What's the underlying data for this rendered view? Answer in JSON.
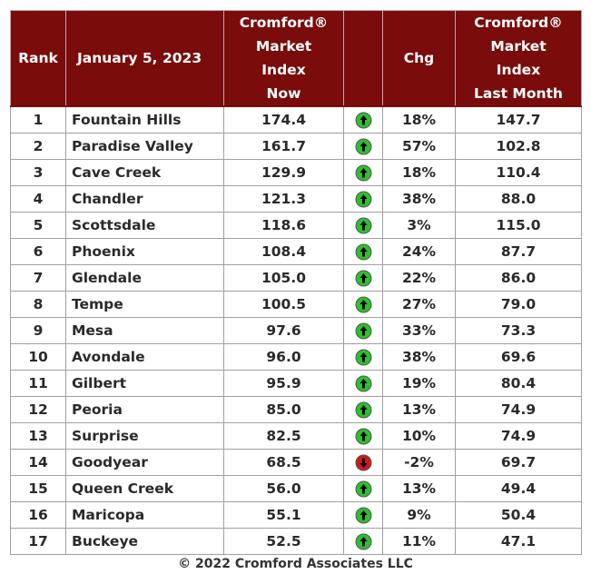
{
  "chart_data": {
    "type": "table",
    "header": {
      "rank": "Rank",
      "date": "January 5, 2023",
      "index_now": [
        "Cromford®",
        "Market",
        "Index",
        "Now"
      ],
      "chg": "Chg",
      "index_last": [
        "Cromford®",
        "Market",
        "Index",
        "Last Month"
      ]
    },
    "rows": [
      {
        "rank": "1",
        "name": "Fountain Hills",
        "now": "174.4",
        "dir": "up",
        "chg": "18%",
        "last": "147.7"
      },
      {
        "rank": "2",
        "name": "Paradise Valley",
        "now": "161.7",
        "dir": "up",
        "chg": "57%",
        "last": "102.8"
      },
      {
        "rank": "3",
        "name": "Cave Creek",
        "now": "129.9",
        "dir": "up",
        "chg": "18%",
        "last": "110.4"
      },
      {
        "rank": "4",
        "name": "Chandler",
        "now": "121.3",
        "dir": "up",
        "chg": "38%",
        "last": "88.0"
      },
      {
        "rank": "5",
        "name": "Scottsdale",
        "now": "118.6",
        "dir": "up",
        "chg": "3%",
        "last": "115.0"
      },
      {
        "rank": "6",
        "name": "Phoenix",
        "now": "108.4",
        "dir": "up",
        "chg": "24%",
        "last": "87.7"
      },
      {
        "rank": "7",
        "name": "Glendale",
        "now": "105.0",
        "dir": "up",
        "chg": "22%",
        "last": "86.0"
      },
      {
        "rank": "8",
        "name": "Tempe",
        "now": "100.5",
        "dir": "up",
        "chg": "27%",
        "last": "79.0"
      },
      {
        "rank": "9",
        "name": "Mesa",
        "now": "97.6",
        "dir": "up",
        "chg": "33%",
        "last": "73.3"
      },
      {
        "rank": "10",
        "name": "Avondale",
        "now": "96.0",
        "dir": "up",
        "chg": "38%",
        "last": "69.6"
      },
      {
        "rank": "11",
        "name": "Gilbert",
        "now": "95.9",
        "dir": "up",
        "chg": "19%",
        "last": "80.4"
      },
      {
        "rank": "12",
        "name": "Peoria",
        "now": "85.0",
        "dir": "up",
        "chg": "13%",
        "last": "74.9"
      },
      {
        "rank": "13",
        "name": "Surprise",
        "now": "82.5",
        "dir": "up",
        "chg": "10%",
        "last": "74.9"
      },
      {
        "rank": "14",
        "name": "Goodyear",
        "now": "68.5",
        "dir": "down",
        "chg": "-2%",
        "last": "69.7"
      },
      {
        "rank": "15",
        "name": "Queen Creek",
        "now": "56.0",
        "dir": "up",
        "chg": "13%",
        "last": "49.4"
      },
      {
        "rank": "16",
        "name": "Maricopa",
        "now": "55.1",
        "dir": "up",
        "chg": "9%",
        "last": "50.4"
      },
      {
        "rank": "17",
        "name": "Buckeye",
        "now": "52.5",
        "dir": "up",
        "chg": "11%",
        "last": "47.1"
      }
    ],
    "colors": {
      "header_bg": "#7a0c0c",
      "up": "#2fbf2f",
      "down": "#d01818"
    },
    "icons": {
      "up": "green-up-arrow-icon",
      "down": "red-down-arrow-icon"
    }
  },
  "footer": "© 2022 Cromford Associates LLC"
}
